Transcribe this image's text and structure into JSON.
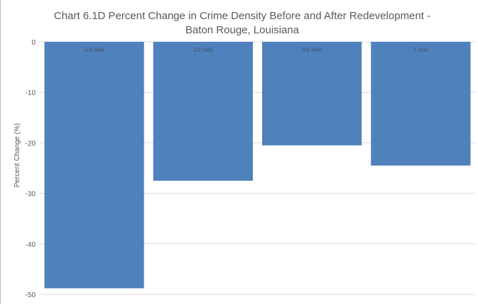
{
  "chart_data": {
    "type": "bar",
    "title_lines": [
      "Chart 6.1D Percent Change in Crime Density Before and After Redevelopment -",
      "Baton Rouge, Louisiana"
    ],
    "xlabel": "",
    "ylabel": "Percent Change (%)",
    "categories": [
      "1/4 mile",
      "1/2 mile",
      "3/4 mile",
      "1 mile"
    ],
    "values": [
      -48.8,
      -27.5,
      -20.5,
      -24.5
    ],
    "ylim": [
      -50,
      0
    ],
    "yticks": [
      0,
      -10,
      -20,
      -30,
      -40,
      -50
    ],
    "grid": true,
    "legend": "none",
    "bar_color": "#4f81bd"
  }
}
